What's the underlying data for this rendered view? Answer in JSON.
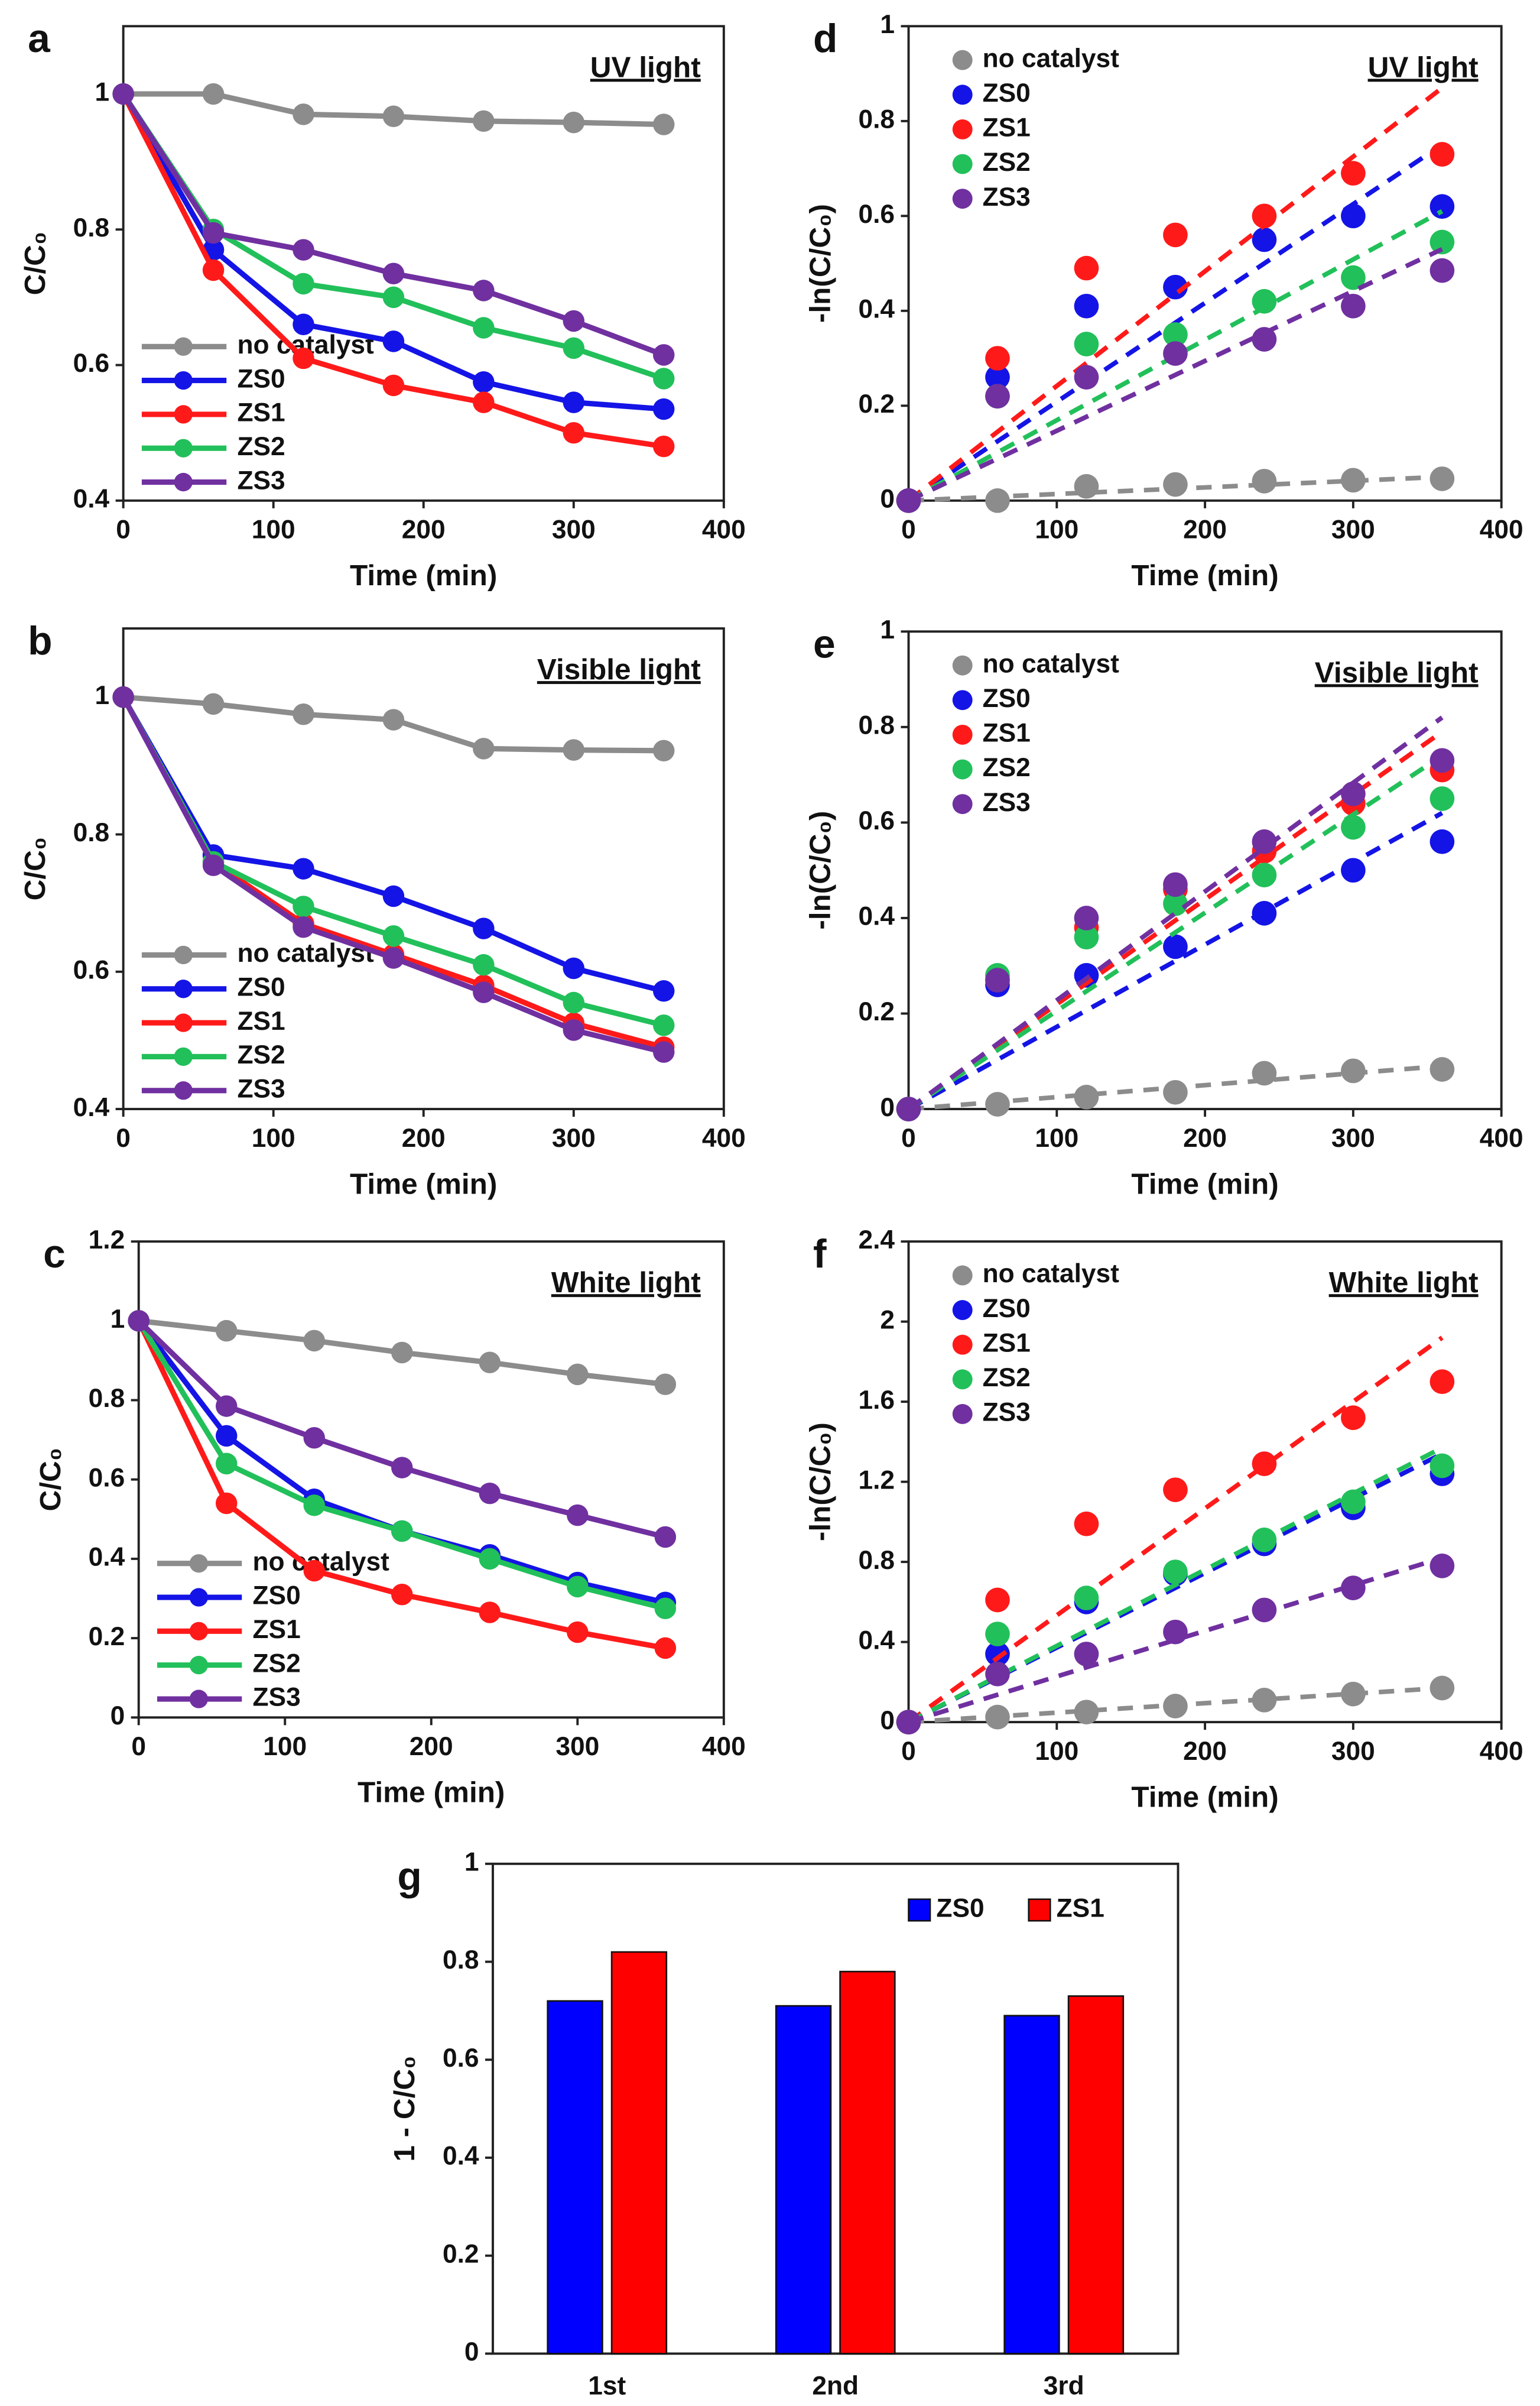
{
  "chart_data": [
    {
      "type": "line",
      "panel": "a",
      "annotation": "UV light",
      "xlabel": "Time (min)",
      "ylabel": "C/C₀",
      "x": [
        0,
        60,
        120,
        180,
        240,
        300,
        360
      ],
      "xlim": [
        0,
        400
      ],
      "xticks": [
        0,
        100,
        200,
        300,
        400
      ],
      "ylim": [
        0.4,
        1.1
      ],
      "yticks": [
        0.4,
        0.6,
        0.8,
        1
      ],
      "legend": "lower left",
      "series": [
        {
          "name": "no catalyst",
          "color": "#8c8c8c",
          "values": [
            1,
            1,
            0.97,
            0.967,
            0.96,
            0.958,
            0.955
          ]
        },
        {
          "name": "ZS0",
          "color": "#1414e6",
          "values": [
            1,
            0.77,
            0.66,
            0.635,
            0.575,
            0.545,
            0.535
          ]
        },
        {
          "name": "ZS1",
          "color": "#ff1a1a",
          "values": [
            1,
            0.74,
            0.61,
            0.57,
            0.545,
            0.5,
            0.48
          ]
        },
        {
          "name": "ZS2",
          "color": "#22c05a",
          "values": [
            1,
            0.8,
            0.72,
            0.7,
            0.655,
            0.625,
            0.58
          ]
        },
        {
          "name": "ZS3",
          "color": "#7030a0",
          "values": [
            1,
            0.795,
            0.77,
            0.735,
            0.71,
            0.665,
            0.615
          ]
        }
      ]
    },
    {
      "type": "line",
      "panel": "b",
      "annotation": "Visible light",
      "xlabel": "Time (min)",
      "ylabel": "C/C₀",
      "x": [
        0,
        60,
        120,
        180,
        240,
        300,
        360
      ],
      "xlim": [
        0,
        400
      ],
      "xticks": [
        0,
        100,
        200,
        300,
        400
      ],
      "ylim": [
        0.4,
        1.1
      ],
      "yticks": [
        0.4,
        0.6,
        0.8,
        1
      ],
      "legend": "lower left",
      "series": [
        {
          "name": "no catalyst",
          "color": "#8c8c8c",
          "values": [
            1,
            0.99,
            0.975,
            0.967,
            0.925,
            0.923,
            0.922
          ]
        },
        {
          "name": "ZS0",
          "color": "#1414e6",
          "values": [
            1,
            0.77,
            0.75,
            0.71,
            0.663,
            0.605,
            0.572
          ]
        },
        {
          "name": "ZS1",
          "color": "#ff1a1a",
          "values": [
            1,
            0.76,
            0.67,
            0.625,
            0.58,
            0.525,
            0.49
          ]
        },
        {
          "name": "ZS2",
          "color": "#22c05a",
          "values": [
            1,
            0.76,
            0.695,
            0.652,
            0.61,
            0.555,
            0.522
          ]
        },
        {
          "name": "ZS3",
          "color": "#7030a0",
          "values": [
            1,
            0.755,
            0.665,
            0.62,
            0.57,
            0.515,
            0.483
          ]
        }
      ]
    },
    {
      "type": "line",
      "panel": "c",
      "annotation": "White light",
      "xlabel": "Time (min)",
      "ylabel": "C/C₀",
      "x": [
        0,
        60,
        120,
        180,
        240,
        300,
        360
      ],
      "xlim": [
        0,
        400
      ],
      "xticks": [
        0,
        100,
        200,
        300,
        400
      ],
      "ylim": [
        0,
        1.2
      ],
      "yticks": [
        0,
        0.2,
        0.4,
        0.6,
        0.8,
        1,
        1.2
      ],
      "legend": "lower left",
      "series": [
        {
          "name": "no catalyst",
          "color": "#8c8c8c",
          "values": [
            1,
            0.975,
            0.95,
            0.92,
            0.895,
            0.865,
            0.84
          ]
        },
        {
          "name": "ZS0",
          "color": "#1414e6",
          "values": [
            1,
            0.71,
            0.55,
            0.47,
            0.41,
            0.34,
            0.29
          ]
        },
        {
          "name": "ZS1",
          "color": "#ff1a1a",
          "values": [
            1,
            0.54,
            0.37,
            0.31,
            0.265,
            0.215,
            0.175
          ]
        },
        {
          "name": "ZS2",
          "color": "#22c05a",
          "values": [
            1,
            0.64,
            0.535,
            0.47,
            0.4,
            0.33,
            0.275
          ]
        },
        {
          "name": "ZS3",
          "color": "#7030a0",
          "values": [
            1,
            0.785,
            0.705,
            0.63,
            0.565,
            0.51,
            0.455
          ]
        }
      ]
    },
    {
      "type": "scatter",
      "panel": "d",
      "annotation": "UV light",
      "xlabel": "Time (min)",
      "ylabel": "-ln(C/C₀)",
      "x": [
        0,
        60,
        120,
        180,
        240,
        300,
        360
      ],
      "fit_x": [
        0,
        360
      ],
      "xlim": [
        0,
        400
      ],
      "xticks": [
        0,
        100,
        200,
        300,
        400
      ],
      "ylim": [
        0,
        1
      ],
      "yticks": [
        0,
        0.2,
        0.4,
        0.6,
        0.8,
        1
      ],
      "legend": "upper left",
      "series": [
        {
          "name": "no catalyst",
          "color": "#8c8c8c",
          "values": [
            0,
            0,
            0.03,
            0.034,
            0.041,
            0.043,
            0.046
          ],
          "fit": [
            0,
            0.05
          ]
        },
        {
          "name": "ZS0",
          "color": "#1414e6",
          "values": [
            0,
            0.26,
            0.41,
            0.45,
            0.55,
            0.6,
            0.62
          ],
          "fit": [
            0,
            0.75
          ]
        },
        {
          "name": "ZS1",
          "color": "#ff1a1a",
          "values": [
            0,
            0.3,
            0.49,
            0.56,
            0.6,
            0.69,
            0.73
          ],
          "fit": [
            0,
            0.87
          ]
        },
        {
          "name": "ZS2",
          "color": "#22c05a",
          "values": [
            0,
            0.22,
            0.33,
            0.35,
            0.42,
            0.47,
            0.545
          ],
          "fit": [
            0,
            0.61
          ]
        },
        {
          "name": "ZS3",
          "color": "#7030a0",
          "values": [
            0,
            0.22,
            0.26,
            0.31,
            0.34,
            0.41,
            0.485
          ],
          "fit": [
            0,
            0.53
          ]
        }
      ]
    },
    {
      "type": "scatter",
      "panel": "e",
      "annotation": "Visible light",
      "xlabel": "Time (min)",
      "ylabel": "-ln(C/C₀)",
      "x": [
        0,
        60,
        120,
        180,
        240,
        300,
        360
      ],
      "fit_x": [
        0,
        360
      ],
      "xlim": [
        0,
        400
      ],
      "xticks": [
        0,
        100,
        200,
        300,
        400
      ],
      "ylim": [
        0,
        1
      ],
      "yticks": [
        0,
        0.2,
        0.4,
        0.6,
        0.8,
        1
      ],
      "legend": "upper left",
      "series": [
        {
          "name": "no catalyst",
          "color": "#8c8c8c",
          "values": [
            0,
            0.01,
            0.025,
            0.035,
            0.075,
            0.08,
            0.083
          ],
          "fit": [
            0,
            0.09
          ]
        },
        {
          "name": "ZS0",
          "color": "#1414e6",
          "values": [
            0,
            0.26,
            0.28,
            0.34,
            0.41,
            0.5,
            0.56
          ],
          "fit": [
            0,
            0.62
          ]
        },
        {
          "name": "ZS1",
          "color": "#ff1a1a",
          "values": [
            0,
            0.27,
            0.38,
            0.46,
            0.54,
            0.64,
            0.71
          ],
          "fit": [
            0,
            0.79
          ]
        },
        {
          "name": "ZS2",
          "color": "#22c05a",
          "values": [
            0,
            0.28,
            0.36,
            0.43,
            0.49,
            0.59,
            0.65
          ],
          "fit": [
            0,
            0.74
          ]
        },
        {
          "name": "ZS3",
          "color": "#7030a0",
          "values": [
            0,
            0.27,
            0.4,
            0.47,
            0.56,
            0.66,
            0.73
          ],
          "fit": [
            0,
            0.82
          ]
        }
      ]
    },
    {
      "type": "scatter",
      "panel": "f",
      "annotation": "White light",
      "xlabel": "Time (min)",
      "ylabel": "-ln(C/C₀)",
      "x": [
        0,
        60,
        120,
        180,
        240,
        300,
        360
      ],
      "fit_x": [
        0,
        360
      ],
      "xlim": [
        0,
        400
      ],
      "xticks": [
        0,
        100,
        200,
        300,
        400
      ],
      "ylim": [
        0,
        2.4
      ],
      "yticks": [
        0,
        0.4,
        0.8,
        1.2,
        1.6,
        2,
        2.4
      ],
      "legend": "upper left",
      "series": [
        {
          "name": "no catalyst",
          "color": "#8c8c8c",
          "values": [
            0,
            0.025,
            0.05,
            0.08,
            0.11,
            0.14,
            0.17
          ],
          "fit": [
            0,
            0.17
          ]
        },
        {
          "name": "ZS0",
          "color": "#1414e6",
          "values": [
            0,
            0.34,
            0.6,
            0.74,
            0.89,
            1.07,
            1.24
          ],
          "fit": [
            0,
            1.34
          ]
        },
        {
          "name": "ZS1",
          "color": "#ff1a1a",
          "values": [
            0,
            0.61,
            0.99,
            1.16,
            1.29,
            1.52,
            1.7
          ],
          "fit": [
            0,
            1.92
          ]
        },
        {
          "name": "ZS2",
          "color": "#22c05a",
          "values": [
            0,
            0.44,
            0.62,
            0.75,
            0.91,
            1.1,
            1.28
          ],
          "fit": [
            0,
            1.37
          ]
        },
        {
          "name": "ZS3",
          "color": "#7030a0",
          "values": [
            0,
            0.24,
            0.34,
            0.45,
            0.56,
            0.67,
            0.78
          ],
          "fit": [
            0,
            0.82
          ]
        }
      ]
    },
    {
      "type": "bar",
      "panel": "g",
      "ylabel": "1 - C/C₀",
      "categories": [
        "1st",
        "2nd",
        "3rd"
      ],
      "ylim": [
        0,
        1
      ],
      "yticks": [
        0,
        0.2,
        0.4,
        0.6,
        0.8,
        1
      ],
      "legend": "upper right",
      "series": [
        {
          "name": "ZS0",
          "color": "#0000ff",
          "values": [
            0.72,
            0.71,
            0.69
          ]
        },
        {
          "name": "ZS1",
          "color": "#ff0000",
          "values": [
            0.82,
            0.78,
            0.73
          ]
        }
      ]
    }
  ]
}
